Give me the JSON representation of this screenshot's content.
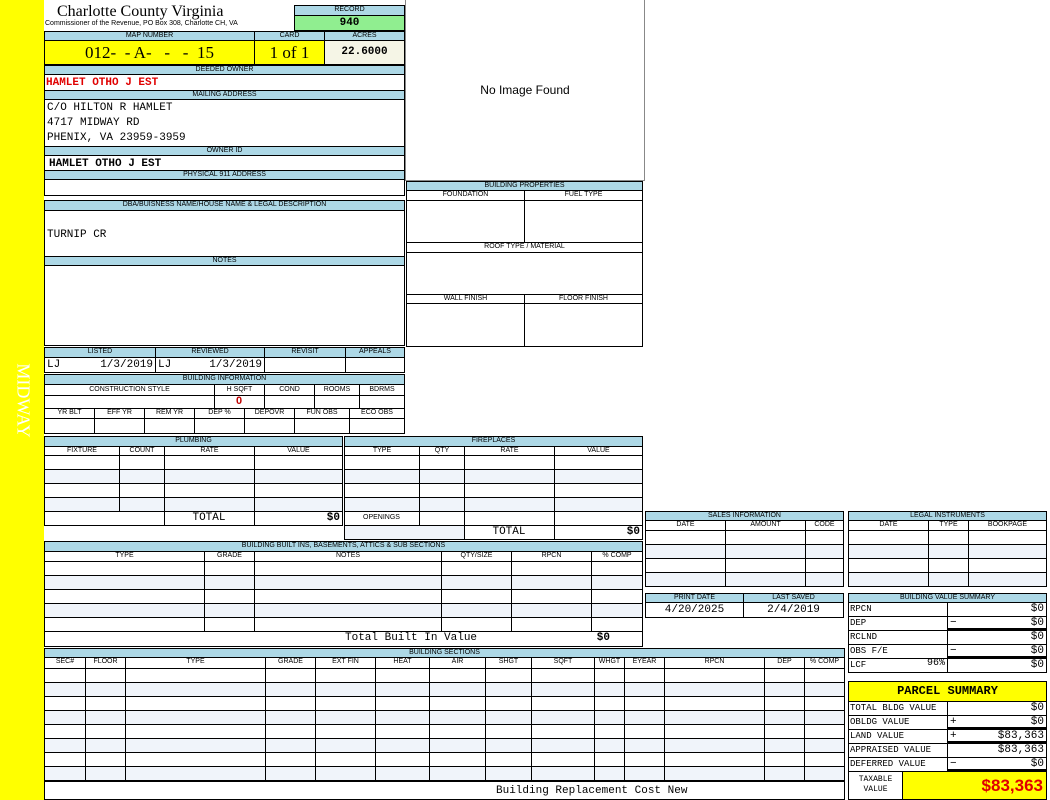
{
  "sidebar": {
    "label": "MIDWAY",
    "color": "#ffff00"
  },
  "header": {
    "title": "Charlotte County Virginia",
    "subtitle": "Commissioner of the Revenue, PO Box 308, Charlotte CH, VA"
  },
  "record": {
    "label": "RECORD",
    "value": "940"
  },
  "map": {
    "label": "MAP NUMBER",
    "value": "012-  - A-   -   -  15"
  },
  "card": {
    "label": "CARD",
    "value": "1 of 1"
  },
  "acres": {
    "label": "ACRES",
    "value": "22.6000"
  },
  "deeded_owner": {
    "label": "DEEDED OWNER",
    "value": "HAMLET OTHO J EST"
  },
  "mailing": {
    "label": "MAILING ADDRESS",
    "lines": [
      "C/O HILTON R HAMLET",
      "4717 MIDWAY RD",
      "PHENIX, VA 23959-3959"
    ]
  },
  "owner_id": {
    "label": "OWNER ID",
    "value": "HAMLET OTHO J EST"
  },
  "physical": {
    "label": "PHYSICAL 911 ADDRESS",
    "value": ""
  },
  "image": {
    "text": "No Image Found"
  },
  "building_properties": {
    "title": "BUILDING PROPERTIES",
    "foundation": "FOUNDATION",
    "fuel": "FUEL TYPE",
    "roof": "ROOF TYPE / MATERIAL",
    "wall": "WALL FINISH",
    "floor": "FLOOR FINISH"
  },
  "dba": {
    "label": "DBA/BUISNESS NAME/HOUSE NAME & LEGAL DESCRIPTION",
    "value": "TURNIP CR"
  },
  "notes": {
    "label": "NOTES",
    "value": ""
  },
  "listed": {
    "label": "LISTED",
    "by": "LJ",
    "date": "1/3/2019"
  },
  "reviewed": {
    "label": "REVIEWED",
    "by": "LJ",
    "date": "1/3/2019"
  },
  "revisit": {
    "label": "REVISIT"
  },
  "appeals": {
    "label": "APPEALS"
  },
  "building_info": {
    "title": "BUILDING INFORMATION",
    "row1": [
      "CONSTRUCTION STYLE",
      "H SQFT",
      "COND",
      "ROOMS",
      "BDRMS"
    ],
    "hsqft": "0",
    "row2": [
      "YR BLT",
      "EFF YR",
      "REM YR",
      "DEP %",
      "DEPOVR",
      "FUN OBS",
      "ECO OBS"
    ]
  },
  "plumbing": {
    "title": "PLUMBING",
    "columns": [
      "FIXTURE",
      "COUNT",
      "RATE",
      "VALUE"
    ],
    "total_label": "TOTAL",
    "total": "$0"
  },
  "fireplaces": {
    "title": "FIREPLACES",
    "columns": [
      "TYPE",
      "QTY",
      "RATE",
      "VALUE"
    ],
    "openings": "OPENINGS",
    "total_label": "TOTAL",
    "total": "$0"
  },
  "built_ins": {
    "title": "BUILDING BUILT INS, BASEMENTS, ATTICS & SUB SECTIONS",
    "columns": [
      "TYPE",
      "GRADE",
      "NOTES",
      "QTY/SIZE",
      "RPCN",
      "% COMP"
    ],
    "total_label": "Total Built In Value",
    "total": "$0"
  },
  "sections": {
    "title": "BUILDING SECTIONS",
    "columns": [
      "SEC#",
      "FLOOR",
      "TYPE",
      "GRADE",
      "EXT FIN",
      "HEAT",
      "AIR",
      "SHGT",
      "SQFT",
      "WHGT",
      "EYEAR",
      "RPCN",
      "DEP",
      "% COMP"
    ],
    "footer": "Building Replacement Cost New"
  },
  "sales": {
    "title": "SALES INFORMATION",
    "columns": [
      "DATE",
      "AMOUNT",
      "CODE"
    ]
  },
  "legal": {
    "title": "LEGAL INSTRUMENTS",
    "columns": [
      "DATE",
      "TYPE",
      "BOOKPAGE"
    ]
  },
  "print_date": {
    "label": "PRINT DATE",
    "value": "4/20/2025"
  },
  "last_saved": {
    "label": "LAST SAVED",
    "value": "2/4/2019"
  },
  "bvs": {
    "title": "BUILDING VALUE SUMMARY",
    "rows": [
      {
        "label": "RPCN",
        "sign": "",
        "value": "$0"
      },
      {
        "label": "DEP",
        "sign": "−",
        "value": "$0"
      },
      {
        "label": "RCLND",
        "sign": "",
        "value": "$0"
      },
      {
        "label": "OBS F/E",
        "sign": "−",
        "value": "$0"
      },
      {
        "label": "LCF",
        "pct": "96%",
        "sign": "",
        "value": "$0"
      }
    ]
  },
  "parcel": {
    "title": "PARCEL SUMMARY",
    "rows": [
      {
        "label": "TOTAL BLDG VALUE",
        "sign": "",
        "value": "$0"
      },
      {
        "label": "OBLDG VALUE",
        "sign": "+",
        "value": "$0"
      },
      {
        "label": "LAND VALUE",
        "sign": "+",
        "value": "$83,363"
      },
      {
        "label": "APPRAISED VALUE",
        "sign": "",
        "value": "$83,363"
      },
      {
        "label": "DEFERRED VALUE",
        "sign": "−",
        "value": "$0"
      }
    ],
    "taxable_label": "TAXABLE VALUE",
    "taxable": "$83,363"
  }
}
